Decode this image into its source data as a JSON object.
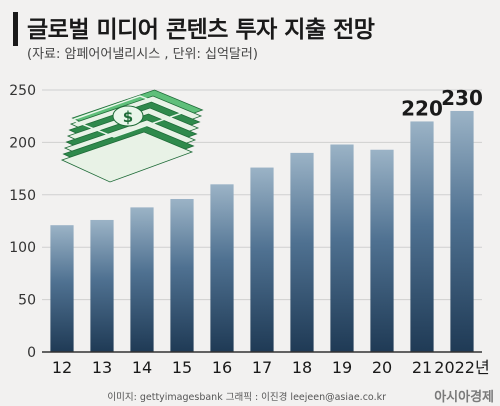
{
  "header": {
    "title": "글로벌 미디어 콘텐츠 투자 지출 전망",
    "subtitle": "(자료: 암페어어낼리시스 , 단위: 십억달러)"
  },
  "footer": {
    "credit": "이미지: gettyimagesbank    그래픽 : 이진경 leejeen@asiae.co.kr",
    "brand": "아시아경제"
  },
  "colors": {
    "bar_top": "#9bb3c6",
    "bar_mid": "#4f7191",
    "bar_bottom": "#1f3a55",
    "axis": "#333333",
    "grid": "#cfcfcf",
    "money_green": "#3a9a58"
  },
  "chart_data": {
    "type": "bar",
    "categories": [
      "12",
      "13",
      "14",
      "15",
      "16",
      "17",
      "18",
      "19",
      "20",
      "21",
      "2022년"
    ],
    "values": [
      121,
      126,
      138,
      146,
      160,
      176,
      190,
      198,
      193,
      220,
      230
    ],
    "data_labels": {
      "21": "220",
      "2022년": "230"
    },
    "title": "글로벌 미디어 콘텐츠 투자 지출 전망",
    "xlabel": "",
    "ylabel": "",
    "ylim": [
      0,
      250
    ],
    "yticks": [
      0,
      50,
      100,
      150,
      200,
      250
    ],
    "grid": true,
    "decoration": "money-stack-icon"
  }
}
